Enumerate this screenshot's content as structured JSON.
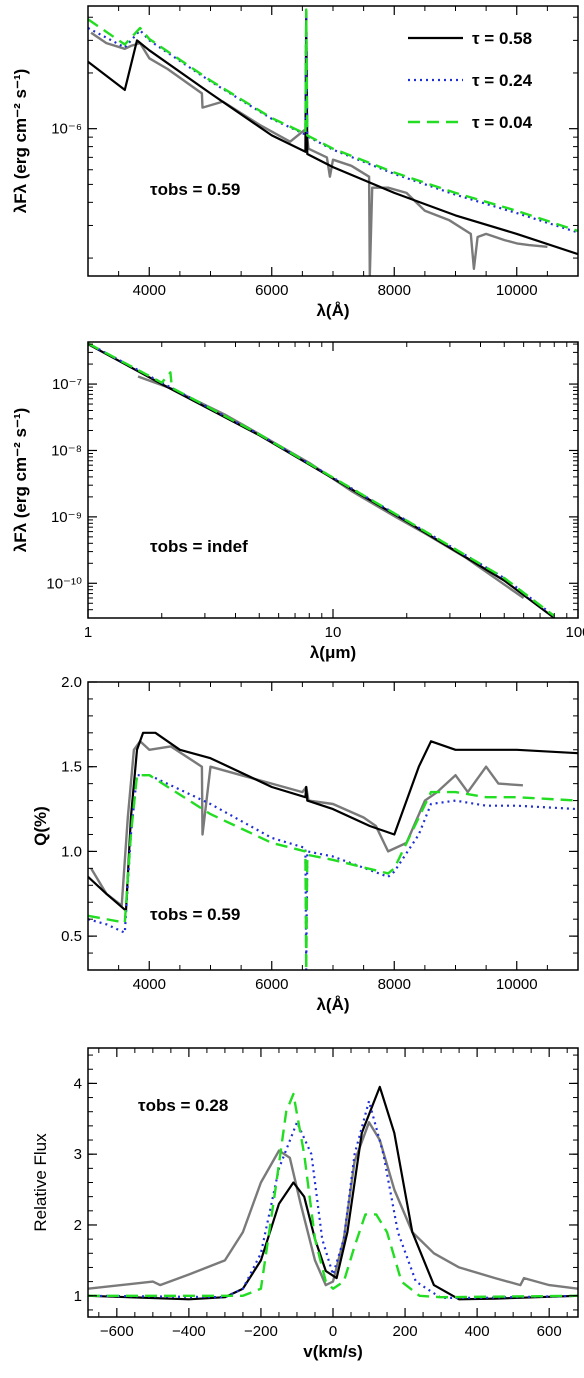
{
  "colors": {
    "observed": "#7a7a7a",
    "tau_058": "#000000",
    "tau_024": "#1f2fd6",
    "tau_004": "#22dd22"
  },
  "legend": [
    {
      "label": "τ =  0.58",
      "color": "#000000",
      "dash": "solid"
    },
    {
      "label": "τ =  0.24",
      "color": "#1f2fd6",
      "dash": "dotted"
    },
    {
      "label": "τ =  0.04",
      "color": "#22dd22",
      "dash": "dashed"
    }
  ],
  "chart_data": [
    {
      "type": "line",
      "xlabel": "λ(Å)",
      "ylabel": "λFλ (erg cm⁻² s⁻¹)",
      "annotation": "τobs =   0.59",
      "xlim": [
        3000,
        11000
      ],
      "ylim": [
        1.6e-07,
        4.6e-06
      ],
      "yscale": "log",
      "xticks": [
        4000,
        6000,
        8000,
        10000
      ],
      "xtick_labels": [
        "4000",
        "6000",
        "8000",
        "10000"
      ],
      "yticks": [
        1e-06
      ],
      "ytick_labels": [
        "10⁻⁶"
      ],
      "series": [
        {
          "name": "τ =  0.58",
          "x": [
            3000,
            3600,
            3800,
            4000,
            5000,
            6000,
            6550,
            6563,
            6580,
            7000,
            8000,
            9000,
            10000,
            11000
          ],
          "y": [
            2.3e-06,
            1.62e-06,
            3e-06,
            2.65e-06,
            1.55e-06,
            9.2e-07,
            7.5e-07,
            4.3e-06,
            7.3e-07,
            6.2e-07,
            4.5e-07,
            3.4e-07,
            2.7e-07,
            2.1e-07
          ]
        },
        {
          "name": "τ =  0.24",
          "x": [
            3000,
            3600,
            3850,
            4000,
            5000,
            6000,
            6550,
            6563,
            6580,
            7000,
            8000,
            9000,
            10000,
            11000
          ],
          "y": [
            3.5e-06,
            2.75e-06,
            3.4e-06,
            3e-06,
            1.8e-06,
            1.13e-06,
            9.3e-07,
            4.3e-06,
            9.1e-07,
            7.7e-07,
            5.7e-07,
            4.4e-07,
            3.5e-07,
            2.75e-07
          ]
        },
        {
          "name": "τ =  0.04",
          "x": [
            3000,
            3600,
            3850,
            4000,
            5000,
            6000,
            6550,
            6563,
            6580,
            7000,
            8000,
            9000,
            10000,
            11000
          ],
          "y": [
            3.9e-06,
            2.85e-06,
            3.5e-06,
            3.05e-06,
            1.82e-06,
            1.14e-06,
            9.4e-07,
            4.4e-06,
            9.2e-07,
            7.8e-07,
            5.8e-07,
            4.5e-07,
            3.6e-07,
            2.8e-07
          ]
        },
        {
          "name": "observed",
          "x": [
            3050,
            3300,
            3600,
            3700,
            3850,
            4000,
            4300,
            4860,
            4870,
            5200,
            5800,
            6300,
            6563,
            6600,
            6900,
            6950,
            7000,
            7300,
            7590,
            7600,
            7640,
            7900,
            8200,
            8500,
            8900,
            9250,
            9300,
            9360,
            9500,
            9800,
            10000,
            10200,
            10500
          ],
          "y": [
            3.3e-06,
            2.9e-06,
            2.7e-06,
            2.8e-06,
            2.9e-06,
            2.4e-06,
            2.1e-06,
            1.55e-06,
            1.3e-06,
            1.4e-06,
            1.05e-06,
            8.5e-07,
            1e-06,
            7.8e-07,
            7e-07,
            5.5e-07,
            6.8e-07,
            6.3e-07,
            5.5e-07,
            1.6e-07,
            4.8e-07,
            4.8e-07,
            4.5e-07,
            3.6e-07,
            3.2e-07,
            2.7e-07,
            1.75e-07,
            2.6e-07,
            2.7e-07,
            2.5e-07,
            2.4e-07,
            2.35e-07,
            2.3e-07
          ]
        }
      ]
    },
    {
      "type": "line",
      "xlabel": "λ(μm)",
      "ylabel": "λFλ (erg cm⁻² s⁻¹)",
      "annotation": "τobs = indef",
      "xlim": [
        1,
        100
      ],
      "xscale": "log",
      "ylim": [
        3e-11,
        4.3e-07
      ],
      "yscale": "log",
      "xticks": [
        1,
        10,
        100
      ],
      "xtick_labels": [
        "1",
        "10",
        "100"
      ],
      "yticks": [
        1e-10,
        1e-09,
        1e-08,
        1e-07
      ],
      "ytick_labels": [
        "10⁻¹⁰",
        "10⁻⁹",
        "10⁻⁸",
        "10⁻⁷"
      ],
      "series": [
        {
          "name": "τ =  0.58",
          "x": [
            1,
            2,
            5,
            10,
            20,
            50,
            80
          ],
          "y": [
            4e-07,
            1e-07,
            1.7e-08,
            3.8e-09,
            8.5e-10,
            1.1e-10,
            3e-11
          ]
        },
        {
          "name": "τ =  0.24",
          "x": [
            1,
            2,
            5,
            10,
            20,
            50,
            80
          ],
          "y": [
            4.1e-07,
            1.05e-07,
            1.75e-08,
            3.9e-09,
            8.8e-10,
            1.2e-10,
            3.2e-11
          ]
        },
        {
          "name": "τ =  0.04",
          "x": [
            1,
            2,
            2.17,
            2.2,
            5,
            10,
            20,
            50,
            80
          ],
          "y": [
            4.1e-07,
            1.05e-07,
            1.5e-07,
            8.8e-08,
            1.75e-08,
            3.9e-09,
            8.8e-10,
            1.2e-10,
            3.2e-11
          ]
        },
        {
          "name": "observed",
          "x": [
            1.6,
            2.2,
            3.6,
            4.5,
            8,
            12,
            18,
            24,
            35,
            60
          ],
          "y": [
            1.3e-07,
            8.5e-08,
            3.5e-08,
            2.2e-08,
            6.5e-09,
            2.4e-09,
            1e-09,
            5.5e-10,
            2.4e-10,
            6e-11
          ]
        }
      ]
    },
    {
      "type": "line",
      "xlabel": "λ(Å)",
      "ylabel": "Q(%)",
      "annotation": "τobs =   0.59",
      "xlim": [
        3000,
        11000
      ],
      "ylim": [
        0.3,
        2.0
      ],
      "xticks": [
        4000,
        6000,
        8000,
        10000
      ],
      "xtick_labels": [
        "4000",
        "6000",
        "8000",
        "10000"
      ],
      "yticks": [
        0.5,
        1.0,
        1.5,
        2.0
      ],
      "ytick_labels": [
        "0.5",
        "1.0",
        "1.5",
        "2.0"
      ],
      "series": [
        {
          "name": "τ =  0.58",
          "x": [
            3000,
            3300,
            3620,
            3700,
            3800,
            3900,
            4100,
            4500,
            5000,
            6000,
            6550,
            6563,
            6580,
            7000,
            7600,
            8000,
            8400,
            8600,
            9000,
            9500,
            10000,
            11000
          ],
          "y": [
            0.85,
            0.75,
            0.65,
            1.2,
            1.6,
            1.7,
            1.7,
            1.6,
            1.55,
            1.38,
            1.32,
            1.38,
            1.3,
            1.25,
            1.15,
            1.1,
            1.5,
            1.65,
            1.6,
            1.6,
            1.6,
            1.58
          ]
        },
        {
          "name": "τ =  0.24",
          "x": [
            3000,
            3300,
            3600,
            3700,
            3800,
            4000,
            5000,
            6000,
            6550,
            6563,
            6580,
            7000,
            7900,
            8000,
            8400,
            8600,
            9000,
            9500,
            10000,
            11000
          ],
          "y": [
            0.6,
            0.57,
            0.52,
            1.1,
            1.45,
            1.45,
            1.28,
            1.08,
            1.02,
            0.3,
            1.0,
            0.97,
            0.85,
            0.88,
            1.1,
            1.28,
            1.3,
            1.27,
            1.27,
            1.25
          ]
        },
        {
          "name": "τ =  0.04",
          "x": [
            3000,
            3300,
            3600,
            3700,
            3800,
            4000,
            5000,
            6000,
            6550,
            6563,
            6580,
            7000,
            7900,
            8000,
            8400,
            8600,
            9000,
            9500,
            10000,
            11000
          ],
          "y": [
            0.62,
            0.6,
            0.58,
            1.1,
            1.45,
            1.45,
            1.22,
            1.05,
            1.0,
            0.3,
            0.98,
            0.95,
            0.87,
            0.9,
            1.2,
            1.35,
            1.35,
            1.32,
            1.32,
            1.3
          ]
        },
        {
          "name": "observed",
          "x": [
            3050,
            3300,
            3550,
            3650,
            3750,
            3850,
            4000,
            4350,
            4860,
            4870,
            5000,
            5500,
            6000,
            6500,
            6563,
            6600,
            7000,
            7500,
            7700,
            7900,
            8200,
            8500,
            8700,
            9000,
            9200,
            9500,
            9700,
            10100
          ],
          "y": [
            0.9,
            0.75,
            0.68,
            1.2,
            1.6,
            1.65,
            1.6,
            1.62,
            1.5,
            1.1,
            1.5,
            1.45,
            1.4,
            1.35,
            1.38,
            1.3,
            1.28,
            1.2,
            1.15,
            1.0,
            1.05,
            1.3,
            1.35,
            1.45,
            1.35,
            1.5,
            1.4,
            1.39
          ]
        }
      ]
    },
    {
      "type": "line",
      "xlabel": "v(km/s)",
      "ylabel": "Relative Flux",
      "annotation": "τobs =   0.28",
      "xlim": [
        -680,
        680
      ],
      "ylim": [
        0.7,
        4.5
      ],
      "xticks": [
        -600,
        -400,
        -200,
        0,
        200,
        400,
        600
      ],
      "xtick_labels": [
        "−600",
        "−400",
        "−200",
        "0",
        "200",
        "400",
        "600"
      ],
      "yticks": [
        1,
        2,
        3,
        4
      ],
      "ytick_labels": [
        "1",
        "2",
        "3",
        "4"
      ],
      "series": [
        {
          "name": "τ =  0.58",
          "x": [
            -680,
            -400,
            -300,
            -250,
            -200,
            -150,
            -110,
            -80,
            -50,
            -20,
            10,
            40,
            80,
            130,
            170,
            220,
            280,
            350,
            450,
            680
          ],
          "y": [
            1.0,
            0.95,
            0.98,
            1.1,
            1.5,
            2.3,
            2.6,
            2.4,
            1.8,
            1.35,
            1.25,
            1.9,
            3.3,
            3.95,
            3.3,
            1.9,
            1.15,
            0.95,
            0.96,
            1.0
          ]
        },
        {
          "name": "τ =  0.24",
          "x": [
            -680,
            -300,
            -250,
            -200,
            -150,
            -100,
            -60,
            -30,
            0,
            30,
            60,
            100,
            140,
            180,
            230,
            300,
            400,
            680
          ],
          "y": [
            1.0,
            0.98,
            1.1,
            1.6,
            2.8,
            3.45,
            3.0,
            1.8,
            1.3,
            1.8,
            3.0,
            3.75,
            3.0,
            1.9,
            1.2,
            0.97,
            0.97,
            1.0
          ]
        },
        {
          "name": "τ =  0.04",
          "x": [
            -680,
            -250,
            -200,
            -160,
            -130,
            -110,
            -80,
            -50,
            -20,
            0,
            30,
            60,
            90,
            120,
            150,
            190,
            240,
            300,
            680
          ],
          "y": [
            1.0,
            1.0,
            1.1,
            2.5,
            3.6,
            3.85,
            3.0,
            1.8,
            1.2,
            1.1,
            1.2,
            1.7,
            2.15,
            2.15,
            1.9,
            1.2,
            1.0,
            0.98,
            1.0
          ]
        },
        {
          "name": "observed",
          "x": [
            -680,
            -500,
            -480,
            -400,
            -300,
            -250,
            -200,
            -150,
            -120,
            -90,
            -50,
            -20,
            0,
            30,
            60,
            100,
            130,
            170,
            220,
            280,
            350,
            450,
            520,
            530,
            600,
            680
          ],
          "y": [
            1.1,
            1.2,
            1.15,
            1.3,
            1.5,
            1.9,
            2.6,
            3.05,
            2.95,
            2.3,
            1.5,
            1.15,
            1.2,
            1.8,
            2.9,
            3.45,
            3.2,
            2.5,
            1.9,
            1.6,
            1.4,
            1.25,
            1.15,
            1.25,
            1.15,
            1.1
          ]
        }
      ]
    }
  ]
}
